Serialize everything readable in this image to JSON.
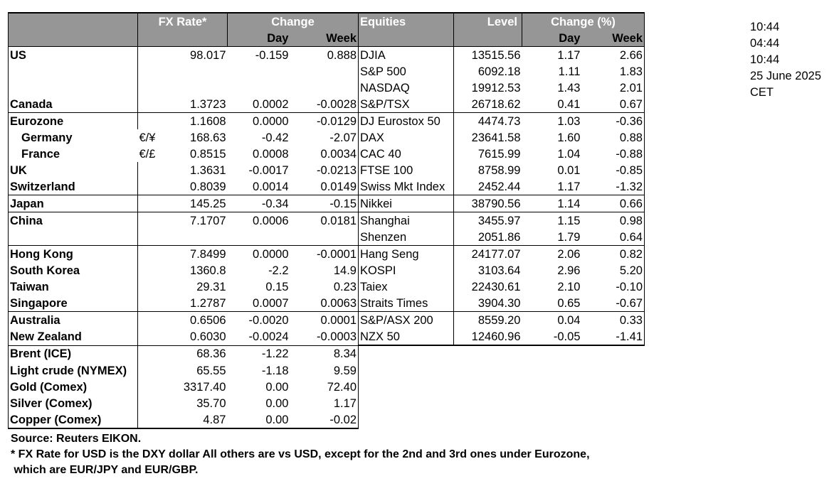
{
  "headers": {
    "fx_rate": "FX Rate*",
    "change": "Change",
    "day": "Day",
    "week": "Week",
    "equities": "Equities",
    "level": "Level",
    "change_pct": "Change (%)",
    "eq_day": "Day",
    "eq_week": "Week"
  },
  "rows": [
    {
      "label": "US",
      "sym": "",
      "rate": "98.017",
      "day": "-0.159",
      "week": "0.888",
      "eq": "DJIA",
      "level": "13515.56",
      "eqday": "1.17",
      "eqweek": "2.66",
      "group_start": true
    },
    {
      "label": "",
      "sym": "",
      "rate": "",
      "day": "",
      "week": "",
      "eq": "S&P 500",
      "level": "6092.18",
      "eqday": "1.11",
      "eqweek": "1.83"
    },
    {
      "label": "",
      "sym": "",
      "rate": "",
      "day": "",
      "week": "",
      "eq": "NASDAQ",
      "level": "19912.53",
      "eqday": "1.43",
      "eqweek": "2.01"
    },
    {
      "label": "Canada",
      "sym": "",
      "rate": "1.3723",
      "day": "0.0002",
      "week": "-0.0028",
      "eq": "S&P/TSX",
      "level": "26718.62",
      "eqday": "0.41",
      "eqweek": "0.67"
    },
    {
      "label": "Eurozone",
      "sym": "",
      "rate": "1.1608",
      "day": "0.0000",
      "week": "-0.0129",
      "eq": "DJ Eurostox 50",
      "level": "4474.73",
      "eqday": "1.03",
      "eqweek": "-0.36",
      "group_start": true
    },
    {
      "label": "Germany",
      "sub": true,
      "sym": "€/¥",
      "rate": "168.63",
      "day": "-0.42",
      "week": "-2.07",
      "eq": "DAX",
      "level": "23641.58",
      "eqday": "1.60",
      "eqweek": "0.88"
    },
    {
      "label": "France",
      "sub": true,
      "sym": "€/£",
      "rate": "0.8515",
      "day": "0.0008",
      "week": "0.0034",
      "eq": "CAC 40",
      "level": "7615.99",
      "eqday": "1.04",
      "eqweek": "-0.88"
    },
    {
      "label": "UK",
      "sym": "",
      "rate": "1.3631",
      "day": "-0.0017",
      "week": "-0.0213",
      "eq": "FTSE 100",
      "level": "8758.99",
      "eqday": "0.01",
      "eqweek": "-0.85"
    },
    {
      "label": "Switzerland",
      "sym": "",
      "rate": "0.8039",
      "day": "0.0014",
      "week": "0.0149",
      "eq": "Swiss Mkt Index",
      "level": "2452.44",
      "eqday": "1.17",
      "eqweek": "-1.32"
    },
    {
      "label": "Japan",
      "sym": "",
      "rate": "145.25",
      "day": "-0.34",
      "week": "-0.15",
      "eq": "Nikkei",
      "level": "38790.56",
      "eqday": "1.14",
      "eqweek": "0.66",
      "group_start": true
    },
    {
      "label": "China",
      "sym": "",
      "rate": "7.1707",
      "day": "0.0006",
      "week": "0.0181",
      "eq": "Shanghai",
      "level": "3455.97",
      "eqday": "1.15",
      "eqweek": "0.98",
      "group_start": true
    },
    {
      "label": "",
      "sym": "",
      "rate": "",
      "day": "",
      "week": "",
      "eq": "Shenzen",
      "level": "2051.86",
      "eqday": "1.79",
      "eqweek": "0.64"
    },
    {
      "label": "Hong Kong",
      "sym": "",
      "rate": "7.8499",
      "day": "0.0000",
      "week": "-0.0001",
      "eq": "Hang Seng",
      "level": "24177.07",
      "eqday": "2.06",
      "eqweek": "0.82",
      "group_start": true
    },
    {
      "label": "South Korea",
      "sym": "",
      "rate": "1360.8",
      "day": "-2.2",
      "week": "14.9",
      "eq": "KOSPI",
      "level": "3103.64",
      "eqday": "2.96",
      "eqweek": "5.20"
    },
    {
      "label": "Taiwan",
      "sym": "",
      "rate": "29.31",
      "day": "0.15",
      "week": "0.23",
      "eq": "Taiex",
      "level": "22430.61",
      "eqday": "2.10",
      "eqweek": "-0.10"
    },
    {
      "label": "Singapore",
      "sym": "",
      "rate": "1.2787",
      "day": "0.0007",
      "week": "0.0063",
      "eq": "Straits Times",
      "level": "3904.30",
      "eqday": "0.65",
      "eqweek": "-0.67"
    },
    {
      "label": "Australia",
      "sym": "",
      "rate": "0.6506",
      "day": "-0.0020",
      "week": "0.0001",
      "eq": "S&P/ASX  200",
      "level": "8559.20",
      "eqday": "0.04",
      "eqweek": "0.33",
      "group_start": true
    },
    {
      "label": "New Zealand",
      "sym": "",
      "rate": "0.6030",
      "day": "-0.0024",
      "week": "-0.0003",
      "eq": "NZX 50",
      "level": "12460.96",
      "eqday": "-0.05",
      "eqweek": "-1.41",
      "eq_end": true
    },
    {
      "label": "Brent (ICE)",
      "sym": "",
      "rate": "68.36",
      "day": "-1.22",
      "week": "8.34",
      "eq": "",
      "level": "",
      "eqday": "",
      "eqweek": "",
      "group_start": true
    },
    {
      "label": "Light crude (NYMEX)",
      "sym": "",
      "rate": "65.55",
      "day": "-1.18",
      "week": "9.59",
      "eq": "",
      "level": "",
      "eqday": "",
      "eqweek": ""
    },
    {
      "label": "Gold (Comex)",
      "sym": "",
      "rate": "3317.40",
      "day": "0.00",
      "week": "72.40",
      "eq": "",
      "level": "",
      "eqday": "",
      "eqweek": ""
    },
    {
      "label": "Silver (Comex)",
      "sym": "",
      "rate": "35.70",
      "day": "0.00",
      "week": "1.17",
      "eq": "",
      "level": "",
      "eqday": "",
      "eqweek": ""
    },
    {
      "label": "Copper (Comex)",
      "sym": "",
      "rate": "4.87",
      "day": "0.00",
      "week": "-0.02",
      "eq": "",
      "level": "",
      "eqday": "",
      "eqweek": "",
      "last": true
    }
  ],
  "time_panel": [
    "10:44",
    "04:44",
    "10:44",
    "25 June 2025",
    "CET"
  ],
  "source": "Source:  Reuters EIKON.",
  "footnote_1": "* FX Rate for USD is the DXY dollar  All others are vs USD, except for the 2nd and 3rd ones under Eurozone,",
  "footnote_2": " which are EUR/JPY and EUR/GBP.",
  "colors": {
    "header_bg": "#969696",
    "header_text": "#ffffff",
    "border": "#000000"
  }
}
